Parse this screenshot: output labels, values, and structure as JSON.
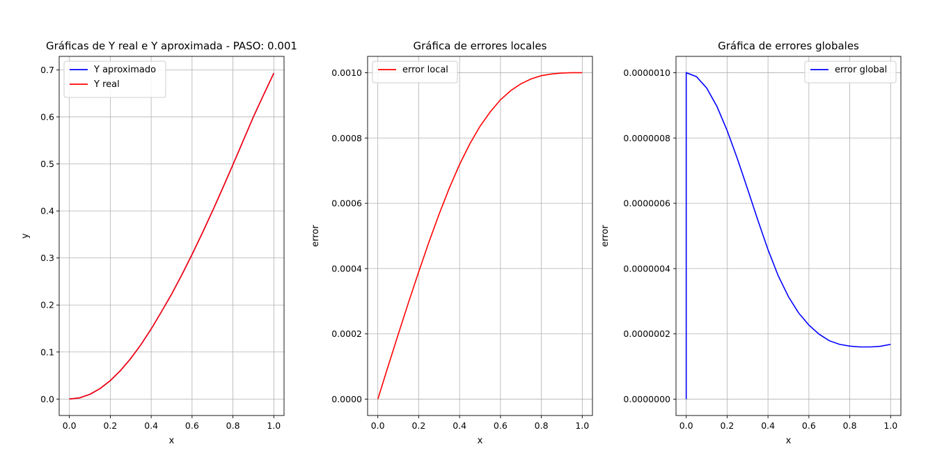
{
  "chart_data": [
    {
      "type": "line",
      "title": "Gráficas de Y real e Y aproximada - PASO: 0.001",
      "xlabel": "x",
      "ylabel": "y",
      "xlim": [
        -0.05,
        1.05
      ],
      "ylim": [
        -0.035,
        0.7287
      ],
      "xticks": [
        0.0,
        0.2,
        0.4,
        0.6,
        0.8,
        1.0
      ],
      "xtick_labels": [
        "0.0",
        "0.2",
        "0.4",
        "0.6",
        "0.8",
        "1.0"
      ],
      "yticks": [
        0.0,
        0.1,
        0.2,
        0.3,
        0.4,
        0.5,
        0.6,
        0.7
      ],
      "ytick_labels": [
        "0.0",
        "0.1",
        "0.2",
        "0.3",
        "0.4",
        "0.5",
        "0.6",
        "0.7"
      ],
      "grid": true,
      "legend_position": "upper left",
      "series": [
        {
          "name": "Y aproximado",
          "color": "#0000ff",
          "x": [
            0.0,
            0.05,
            0.1,
            0.15,
            0.2,
            0.25,
            0.3,
            0.35,
            0.4,
            0.45,
            0.5,
            0.55,
            0.6,
            0.65,
            0.7,
            0.75,
            0.8,
            0.85,
            0.9,
            0.95,
            1.0
          ],
          "y": [
            0.0,
            0.0025,
            0.01,
            0.0223,
            0.0392,
            0.0606,
            0.0862,
            0.1157,
            0.1489,
            0.1855,
            0.2231,
            0.2642,
            0.3075,
            0.3528,
            0.3999,
            0.4486,
            0.4984,
            0.5491,
            0.6,
            0.647,
            0.6931
          ]
        },
        {
          "name": "Y real",
          "color": "#ff0000",
          "x": [
            0.0,
            0.05,
            0.1,
            0.15,
            0.2,
            0.25,
            0.3,
            0.35,
            0.4,
            0.45,
            0.5,
            0.55,
            0.6,
            0.65,
            0.7,
            0.75,
            0.8,
            0.85,
            0.9,
            0.95,
            1.0
          ],
          "y": [
            0.0,
            0.0025,
            0.01,
            0.0223,
            0.0392,
            0.0606,
            0.0862,
            0.1157,
            0.1489,
            0.1855,
            0.2231,
            0.2642,
            0.3075,
            0.3528,
            0.3999,
            0.4486,
            0.4984,
            0.5491,
            0.6,
            0.647,
            0.6931
          ]
        }
      ]
    },
    {
      "type": "line",
      "title": "Gráfica de errores locales",
      "xlabel": "x",
      "ylabel": "error",
      "xlim": [
        -0.05,
        1.05
      ],
      "ylim": [
        -5e-05,
        0.00105
      ],
      "xticks": [
        0.0,
        0.2,
        0.4,
        0.6,
        0.8,
        1.0
      ],
      "xtick_labels": [
        "0.0",
        "0.2",
        "0.4",
        "0.6",
        "0.8",
        "1.0"
      ],
      "yticks": [
        0.0,
        0.0002,
        0.0004,
        0.0006,
        0.0008,
        0.001
      ],
      "ytick_labels": [
        "0.0000",
        "0.0002",
        "0.0004",
        "0.0006",
        "0.0008",
        "0.0010"
      ],
      "grid": true,
      "legend_position": "upper left",
      "series": [
        {
          "name": "error local",
          "color": "#ff0000",
          "x": [
            0.0,
            0.05,
            0.1,
            0.15,
            0.2,
            0.25,
            0.3,
            0.35,
            0.4,
            0.45,
            0.5,
            0.55,
            0.6,
            0.65,
            0.7,
            0.75,
            0.8,
            0.85,
            0.9,
            0.95,
            1.0
          ],
          "y": [
            0.0,
            0.0001,
            0.000199,
            0.000296,
            0.00039,
            0.000481,
            0.000567,
            0.000647,
            0.000719,
            0.000782,
            0.000836,
            0.00088,
            0.000917,
            0.000945,
            0.000966,
            0.000981,
            0.000991,
            0.000996,
            0.000999,
            0.001,
            0.001
          ]
        }
      ]
    },
    {
      "type": "line",
      "title": "Gráfica de errores globales",
      "xlabel": "x",
      "ylabel": "error",
      "xlim": [
        -0.05,
        1.05
      ],
      "ylim": [
        -5e-08,
        1.05e-06
      ],
      "xticks": [
        0.0,
        0.2,
        0.4,
        0.6,
        0.8,
        1.0
      ],
      "xtick_labels": [
        "0.0",
        "0.2",
        "0.4",
        "0.6",
        "0.8",
        "1.0"
      ],
      "yticks": [
        0.0,
        2e-07,
        4e-07,
        6e-07,
        8e-07,
        1e-06
      ],
      "ytick_labels": [
        "0.0000000",
        "0.0000002",
        "0.0000004",
        "0.0000006",
        "0.0000008",
        "0.0000010"
      ],
      "grid": true,
      "legend_position": "upper right",
      "series": [
        {
          "name": "error global",
          "color": "#0000ff",
          "x": [
            0.0,
            0.0,
            0.05,
            0.1,
            0.15,
            0.2,
            0.25,
            0.3,
            0.35,
            0.4,
            0.45,
            0.5,
            0.55,
            0.6,
            0.65,
            0.7,
            0.75,
            0.8,
            0.85,
            0.9,
            0.95,
            1.0
          ],
          "y": [
            0.0,
            1e-06,
            9.88e-07,
            9.53e-07,
            8.97e-07,
            8.23e-07,
            7.37e-07,
            6.44e-07,
            5.49e-07,
            4.58e-07,
            3.78e-07,
            3.14e-07,
            2.64e-07,
            2.27e-07,
            1.99e-07,
            1.79e-07,
            1.68e-07,
            1.625e-07,
            1.6e-07,
            1.6e-07,
            1.62e-07,
            1.68e-07
          ]
        }
      ]
    }
  ]
}
